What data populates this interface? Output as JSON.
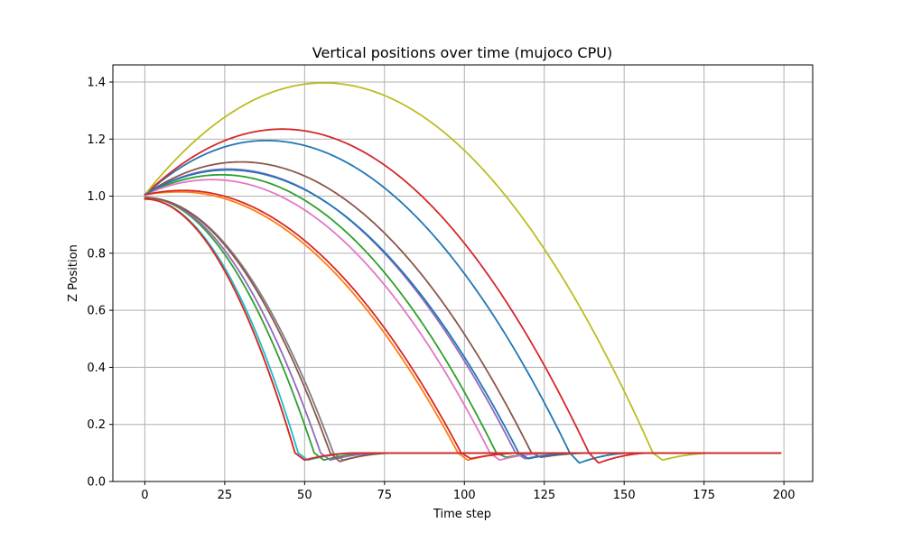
{
  "chart_data": {
    "type": "line",
    "title": "Vertical positions over time (mujoco CPU)",
    "xlabel": "Time step",
    "ylabel": "Z Position",
    "xlim": [
      -10,
      209
    ],
    "ylim": [
      0.0,
      1.46
    ],
    "xticks": [
      0,
      25,
      50,
      75,
      100,
      125,
      150,
      175,
      200
    ],
    "yticks": [
      0.0,
      0.2,
      0.4,
      0.6,
      0.8,
      1.0,
      1.2,
      1.4
    ],
    "grid": true,
    "legend": "none",
    "rest_height": 0.1,
    "series": [
      {
        "color": "#1f77b4",
        "z0": 1.005,
        "peak_t": 38,
        "peak_z": 1.195,
        "land_t": 133,
        "dip_z": 0.065
      },
      {
        "color": "#ff7f0e",
        "z0": 1.005,
        "peak_t": 11,
        "peak_z": 1.015,
        "land_t": 98,
        "dip_z": 0.075
      },
      {
        "color": "#2ca02c",
        "z0": 1.005,
        "peak_t": 24,
        "peak_z": 1.075,
        "land_t": 110,
        "dip_z": 0.085
      },
      {
        "color": "#d62728",
        "z0": 1.005,
        "peak_t": 43,
        "peak_z": 1.235,
        "land_t": 139,
        "dip_z": 0.065
      },
      {
        "color": "#9467bd",
        "z0": 1.005,
        "peak_t": 26,
        "peak_z": 1.095,
        "land_t": 116,
        "dip_z": 0.08
      },
      {
        "color": "#8c564b",
        "z0": 1.005,
        "peak_t": 30,
        "peak_z": 1.12,
        "land_t": 121,
        "dip_z": 0.085
      },
      {
        "color": "#e377c2",
        "z0": 1.005,
        "peak_t": 21,
        "peak_z": 1.058,
        "land_t": 108,
        "dip_z": 0.075
      },
      {
        "color": "#7f7f7f",
        "z0": 0.995,
        "peak_t": 0,
        "peak_z": 0.995,
        "land_t": 59,
        "dip_z": 0.075
      },
      {
        "color": "#bcbd22",
        "z0": 1.005,
        "peak_t": 56,
        "peak_z": 1.397,
        "land_t": 159,
        "dip_z": 0.075
      },
      {
        "color": "#17becf",
        "z0": 0.99,
        "peak_t": 0,
        "peak_z": 0.99,
        "land_t": 48,
        "dip_z": 0.075
      },
      {
        "color": "#1f77b4",
        "z0": 1.005,
        "peak_t": 26,
        "peak_z": 1.092,
        "land_t": 117,
        "dip_z": 0.08
      },
      {
        "color": "#ff7f0e",
        "z0": 0.99,
        "peak_t": 0,
        "peak_z": 0.99,
        "land_t": 47,
        "dip_z": 0.075
      },
      {
        "color": "#2ca02c",
        "z0": 0.995,
        "peak_t": 0,
        "peak_z": 0.995,
        "land_t": 53,
        "dip_z": 0.075
      },
      {
        "color": "#d62728",
        "z0": 1.005,
        "peak_t": 12,
        "peak_z": 1.02,
        "land_t": 99,
        "dip_z": 0.08
      },
      {
        "color": "#9467bd",
        "z0": 0.995,
        "peak_t": 0,
        "peak_z": 0.995,
        "land_t": 55,
        "dip_z": 0.075
      },
      {
        "color": "#8c564b",
        "z0": 0.995,
        "peak_t": 0,
        "peak_z": 0.995,
        "land_t": 58,
        "dip_z": 0.07
      },
      {
        "color": "#d62728",
        "z0": 0.99,
        "peak_t": 0,
        "peak_z": 0.99,
        "land_t": 47,
        "dip_z": 0.075
      }
    ],
    "last_step": 199
  }
}
